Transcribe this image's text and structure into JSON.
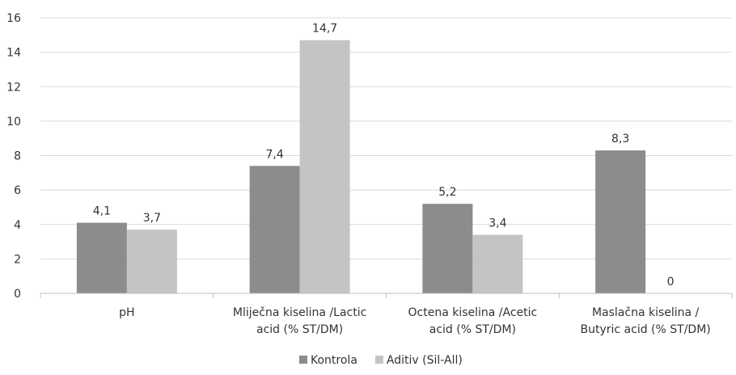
{
  "chart_data": {
    "type": "bar",
    "categories": [
      [
        "pH"
      ],
      [
        "Mliječna kiselina /Lactic",
        "acid   (% ST/DM)"
      ],
      [
        "Octena kiselina /Acetic",
        "acid (% ST/DM)"
      ],
      [
        "Maslačna kiselina /",
        "Butyric acid (% ST/DM)"
      ]
    ],
    "series": [
      {
        "name": "Kontrola",
        "values": [
          4.1,
          7.4,
          5.2,
          8.3
        ],
        "labels": [
          "4,1",
          "7,4",
          "5,2",
          "8,3"
        ],
        "color": "#8c8c8c"
      },
      {
        "name": "Aditiv (Sil-All)",
        "values": [
          3.7,
          14.7,
          3.4,
          0
        ],
        "labels": [
          "3,7",
          "14,7",
          "3,4",
          "0"
        ],
        "color": "#c4c4c4"
      }
    ],
    "yticks": [
      "0",
      "2",
      "4",
      "6",
      "8",
      "10",
      "12",
      "14",
      "16"
    ],
    "ylim": [
      0,
      16
    ],
    "grid": true,
    "legend": "bottom"
  }
}
